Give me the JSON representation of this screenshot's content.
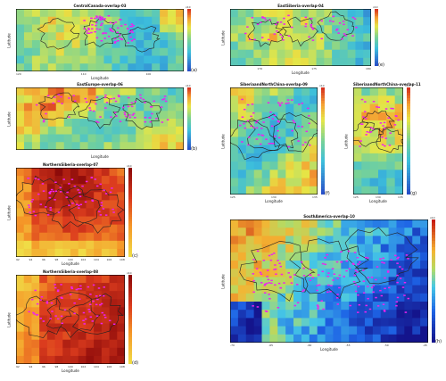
{
  "chart_data": [
    {
      "id": "a",
      "type": "heatmap",
      "title": "CentralCanada-overlap-03",
      "xlabel": "Longitude",
      "ylabel": "Latitude",
      "palette": "mid",
      "xticks": [
        "120",
        "",
        "110",
        "",
        "100",
        ""
      ],
      "yticks": [
        "",
        "",
        "",
        "",
        "",
        "",
        ""
      ],
      "cb_ticks": [
        "",
        "",
        "",
        ""
      ],
      "cb_exp": "x10",
      "label": "(a)"
    },
    {
      "id": "b",
      "type": "heatmap",
      "title": "EastEurope-overlap-06",
      "xlabel": "Longitude",
      "ylabel": "Latitude",
      "palette": "mid",
      "xticks": [
        "",
        "",
        "",
        "",
        "",
        ""
      ],
      "yticks": [
        "",
        "",
        "",
        "",
        "",
        ""
      ],
      "cb_ticks": [
        "",
        "",
        "",
        ""
      ],
      "cb_exp": "x10",
      "label": "(b)"
    },
    {
      "id": "c",
      "type": "heatmap",
      "title": "NorthernSiberia-overlap-07",
      "xlabel": "Longitude",
      "ylabel": "Latitude",
      "palette": "hot",
      "xticks": [
        "92",
        "94",
        "96",
        "98",
        "100",
        "102",
        "104",
        "106",
        "108"
      ],
      "yticks": [
        "",
        "",
        "",
        "",
        "",
        ""
      ],
      "cb_ticks": [
        "",
        "",
        "",
        ""
      ],
      "cb_exp": "x10",
      "label": "(c)"
    },
    {
      "id": "d",
      "type": "heatmap",
      "title": "NorthernSiberia-overlap-08",
      "xlabel": "Longitude",
      "ylabel": "Latitude",
      "palette": "hot",
      "xticks": [
        "92",
        "94",
        "96",
        "98",
        "100",
        "102",
        "104",
        "106",
        "108"
      ],
      "yticks": [
        "",
        "",
        "",
        "",
        "",
        ""
      ],
      "cb_ticks": [
        "",
        "",
        "",
        ""
      ],
      "cb_exp": "x10",
      "label": "(d)"
    },
    {
      "id": "e",
      "type": "heatmap",
      "title": "EastSiberia-overlap-04",
      "xlabel": "Longitude",
      "ylabel": "Latitude",
      "palette": "mid",
      "xticks": [
        "",
        "170",
        "",
        "175",
        "",
        "180"
      ],
      "yticks": [
        "",
        "",
        "",
        "",
        ""
      ],
      "cb_ticks": [
        "",
        "",
        "",
        ""
      ],
      "cb_exp": "x10",
      "label": "(e)"
    },
    {
      "id": "f",
      "type": "heatmap",
      "title": "SiberiaandNorthChina-overlap-09",
      "xlabel": "Longitude",
      "ylabel": "Latitude",
      "palette": "mid",
      "xticks": [
        "125",
        "130",
        "135"
      ],
      "yticks": [
        "",
        "",
        "",
        "",
        "",
        ""
      ],
      "cb_ticks": [
        "",
        "",
        "",
        ""
      ],
      "cb_exp": "x10",
      "label": "(f)"
    },
    {
      "id": "g",
      "type": "heatmap",
      "title": "SiberiaandNorthChina-overlap-11",
      "xlabel": "Longitude",
      "ylabel": "Latitude",
      "palette": "mid",
      "xticks": [
        "125",
        "130",
        "135"
      ],
      "yticks": [
        "",
        "",
        "",
        "",
        "",
        ""
      ],
      "cb_ticks": [
        "",
        "",
        "",
        ""
      ],
      "cb_exp": "x10",
      "label": "(g)"
    },
    {
      "id": "h",
      "type": "heatmap",
      "title": "SouthAmerica-overlap-10",
      "xlabel": "Longitude",
      "ylabel": "Latitude",
      "palette": "sa",
      "xticks": [
        "-70",
        "-65",
        "-60",
        "-55",
        "-50",
        "-45"
      ],
      "yticks": [
        "",
        "",
        "",
        "",
        "",
        "",
        ""
      ],
      "cb_ticks": [
        "",
        "",
        "",
        ""
      ],
      "cb_exp": "x10",
      "label": "(h)"
    }
  ]
}
